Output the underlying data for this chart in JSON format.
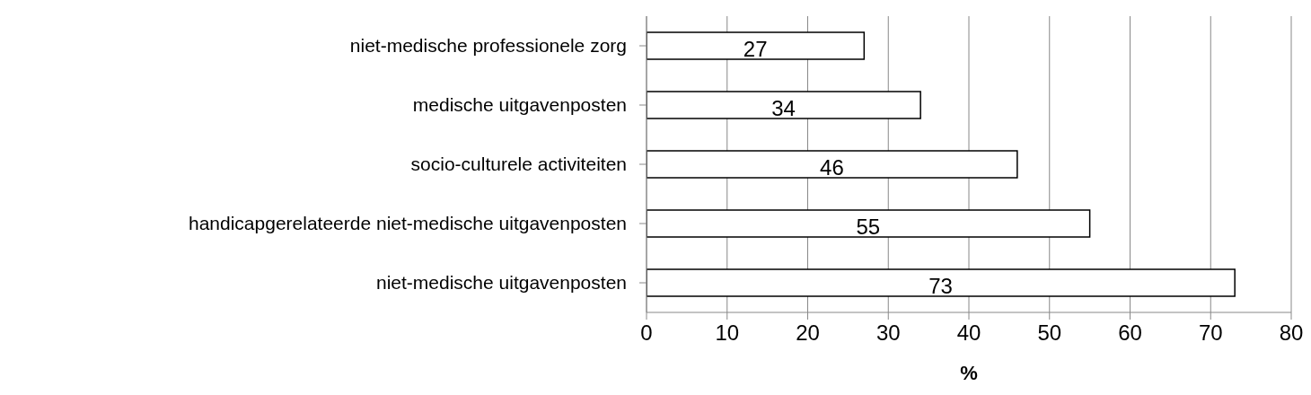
{
  "chart_data": {
    "type": "bar",
    "orientation": "horizontal",
    "categories": [
      "niet-medische professionele zorg",
      "medische uitgavenposten",
      "socio-culturele activiteiten",
      "handicapgerelateerde niet-medische uitgavenposten",
      "niet-medische uitgavenposten"
    ],
    "values": [
      27,
      34,
      46,
      55,
      73
    ],
    "color": "#ffffff",
    "xlabel": "%",
    "xlim": [
      0,
      80
    ],
    "xticks": [
      0,
      10,
      20,
      30,
      40,
      50,
      60,
      70,
      80
    ],
    "grid": "x",
    "data_labels": true
  }
}
